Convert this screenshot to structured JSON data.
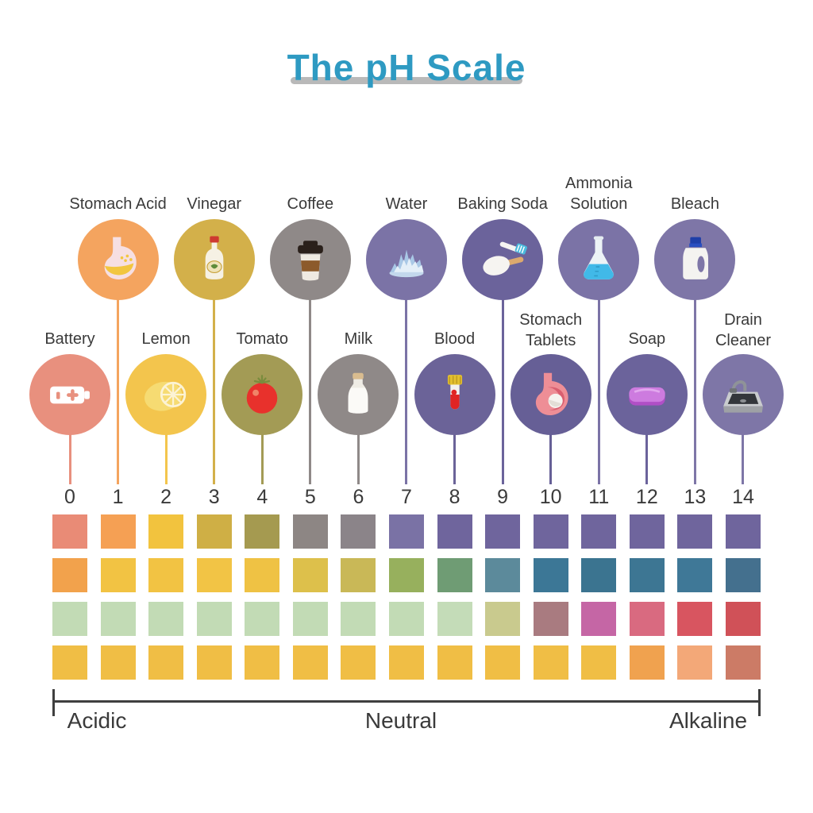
{
  "title": {
    "text": "The pH Scale",
    "color": "#2E9AC2"
  },
  "scale": {
    "numbers": [
      "0",
      "1",
      "2",
      "3",
      "4",
      "5",
      "6",
      "7",
      "8",
      "9",
      "10",
      "11",
      "12",
      "13",
      "14"
    ],
    "items": [
      {
        "ph": 0,
        "label": "Battery",
        "row": "bottom",
        "color": "#E8907E",
        "icon": "battery-icon"
      },
      {
        "ph": 1,
        "label": "Stomach Acid",
        "row": "top",
        "color": "#F4A45F",
        "icon": "stomach-acid-icon"
      },
      {
        "ph": 2,
        "label": "Lemon",
        "row": "bottom",
        "color": "#F3C54D",
        "icon": "lemon-icon"
      },
      {
        "ph": 3,
        "label": "Vinegar",
        "row": "top",
        "color": "#D3B04A",
        "icon": "vinegar-bottle-icon"
      },
      {
        "ph": 4,
        "label": "Tomato",
        "row": "bottom",
        "color": "#A39B55",
        "icon": "tomato-icon"
      },
      {
        "ph": 5,
        "label": "Coffee",
        "row": "top",
        "color": "#8F8988",
        "icon": "coffee-cup-icon"
      },
      {
        "ph": 6,
        "label": "Milk",
        "row": "bottom",
        "color": "#8F8988",
        "icon": "milk-bottle-icon"
      },
      {
        "ph": 7,
        "label": "Water",
        "row": "top",
        "color": "#7B73A6",
        "icon": "water-splash-icon"
      },
      {
        "ph": 8,
        "label": "Blood",
        "row": "bottom",
        "color": "#6B6398",
        "icon": "blood-tube-icon"
      },
      {
        "ph": 9,
        "label": "Baking Soda",
        "row": "top",
        "color": "#6B639B",
        "icon": "baking-soda-icon"
      },
      {
        "ph": 10,
        "label": "Stomach\nTablets",
        "row": "bottom",
        "color": "#665F96",
        "icon": "stomach-tablets-icon"
      },
      {
        "ph": 11,
        "label": "Ammonia\nSolution",
        "row": "top",
        "color": "#7B73A6",
        "icon": "ammonia-flask-icon"
      },
      {
        "ph": 12,
        "label": "Soap",
        "row": "bottom",
        "color": "#6B639B",
        "icon": "soap-bar-icon"
      },
      {
        "ph": 13,
        "label": "Bleach",
        "row": "top",
        "color": "#7E76A7",
        "icon": "bleach-bottle-icon"
      },
      {
        "ph": 14,
        "label": "Drain\nCleaner",
        "row": "bottom",
        "color": "#7E76A7",
        "icon": "drain-cleaner-icon"
      }
    ]
  },
  "swatch_rows": [
    [
      "#E98B76",
      "#F5A054",
      "#F2C33E",
      "#CFAF45",
      "#A59A50",
      "#8D8684",
      "#8B8489",
      "#7A72A5",
      "#6F659D",
      "#6F659D",
      "#6F659D",
      "#6F659D",
      "#6F659D",
      "#6F659D",
      "#6F659D"
    ],
    [
      "#F2A24C",
      "#F2C343",
      "#F2C343",
      "#F2C445",
      "#EFC244",
      "#DDC04B",
      "#C9B857",
      "#97B05D",
      "#6F9C74",
      "#5C8A9B",
      "#3C7796",
      "#3B7490",
      "#3D7693",
      "#3F7897",
      "#44708E"
    ],
    [
      "#C2DBB5",
      "#C2DBB5",
      "#C2DBB5",
      "#C2DBB5",
      "#C2DBB5",
      "#C2DBB5",
      "#C2DBB5",
      "#C2DBB5",
      "#C4DCB8",
      "#C9CA8E",
      "#A97B80",
      "#C566A5",
      "#D96A80",
      "#D85560",
      "#D05158"
    ],
    [
      "#F0BE45",
      "#F0BE45",
      "#F0BE45",
      "#F0BE45",
      "#F0BE45",
      "#F0BE45",
      "#F0BE45",
      "#F0BE45",
      "#F0BE45",
      "#F0BE45",
      "#F0BE45",
      "#F0BE45",
      "#F0A24F",
      "#F3A878",
      "#CC7B66"
    ]
  ],
  "axis": {
    "left_label": "Acidic",
    "center_label": "Neutral",
    "right_label": "Alkaline"
  }
}
